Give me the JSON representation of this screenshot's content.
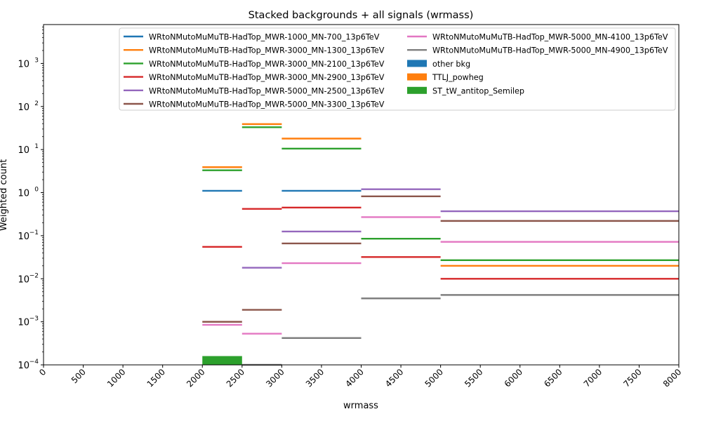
{
  "chart_data": {
    "type": "step",
    "title": "Stacked backgrounds + all signals (wrmass)",
    "xlabel": "wrmass",
    "ylabel": "Weighted count",
    "xlim": [
      0,
      8000
    ],
    "ylim": [
      0.0001,
      8000
    ],
    "yscale": "log",
    "grid": false,
    "legend_position": "top-right",
    "legend_columns": 2,
    "x_ticks": [
      0,
      500,
      1000,
      1500,
      2000,
      2500,
      3000,
      3500,
      4000,
      4500,
      5000,
      5500,
      6000,
      6500,
      7000,
      7500,
      8000
    ],
    "y_ticks": [
      {
        "value": 0.0001,
        "base": "10",
        "exp": "−4"
      },
      {
        "value": 0.001,
        "base": "10",
        "exp": "−3"
      },
      {
        "value": 0.01,
        "base": "10",
        "exp": "−2"
      },
      {
        "value": 0.1,
        "base": "10",
        "exp": "−1"
      },
      {
        "value": 1,
        "base": "10",
        "exp": "0"
      },
      {
        "value": 10,
        "base": "10",
        "exp": "1"
      },
      {
        "value": 100,
        "base": "10",
        "exp": "2"
      },
      {
        "value": 1000,
        "base": "10",
        "exp": "3"
      }
    ],
    "bin_edges": [
      2000,
      2500,
      3000,
      4000,
      5000,
      8000
    ],
    "stacked_backgrounds": [
      {
        "name": "other bkg",
        "color": "#1f77b4",
        "values": [
          null,
          null,
          null,
          null,
          null
        ]
      },
      {
        "name": "TTLJ_powheg",
        "color": "#ff7f0e",
        "values": [
          null,
          null,
          null,
          null,
          null
        ]
      },
      {
        "name": "ST_tW_antitop_Semilep",
        "color": "#2ca02c",
        "values": [
          0.00016,
          null,
          null,
          null,
          null
        ]
      }
    ],
    "signals": [
      {
        "name": "WRtoNMutoMuMuTB-HadTop_MWR-1000_MN-700_13p6TeV",
        "color": "#1f77b4",
        "values": [
          1.1,
          null,
          1.1,
          null,
          null
        ]
      },
      {
        "name": "WRtoNMutoMuMuTB-HadTop_MWR-3000_MN-1300_13p6TeV",
        "color": "#ff7f0e",
        "values": [
          3.9,
          39,
          18,
          null,
          0.02
        ]
      },
      {
        "name": "WRtoNMutoMuMuTB-HadTop_MWR-3000_MN-2100_13p6TeV",
        "color": "#2ca02c",
        "values": [
          3.3,
          33,
          10.5,
          0.085,
          0.027
        ]
      },
      {
        "name": "WRtoNMutoMuMuTB-HadTop_MWR-3000_MN-2900_13p6TeV",
        "color": "#d62728",
        "values": [
          0.055,
          0.42,
          0.45,
          0.032,
          0.01
        ]
      },
      {
        "name": "WRtoNMutoMuMuTB-HadTop_MWR-5000_MN-2500_13p6TeV",
        "color": "#9467bd",
        "values": [
          null,
          0.018,
          0.125,
          1.2,
          0.37
        ]
      },
      {
        "name": "WRtoNMutoMuMuTB-HadTop_MWR-5000_MN-3300_13p6TeV",
        "color": "#8c564b",
        "values": [
          0.001,
          0.0019,
          0.066,
          0.82,
          0.22
        ]
      },
      {
        "name": "WRtoNMutoMuMuTB-HadTop_MWR-5000_MN-4100_13p6TeV",
        "color": "#e377c2",
        "values": [
          0.00085,
          0.00053,
          0.023,
          0.27,
          0.072
        ]
      },
      {
        "name": "WRtoNMutoMuMuTB-HadTop_MWR-5000_MN-4900_13p6TeV",
        "color": "#7f7f7f",
        "values": [
          null,
          0.0001,
          0.00042,
          0.0035,
          0.0042
        ]
      }
    ]
  }
}
